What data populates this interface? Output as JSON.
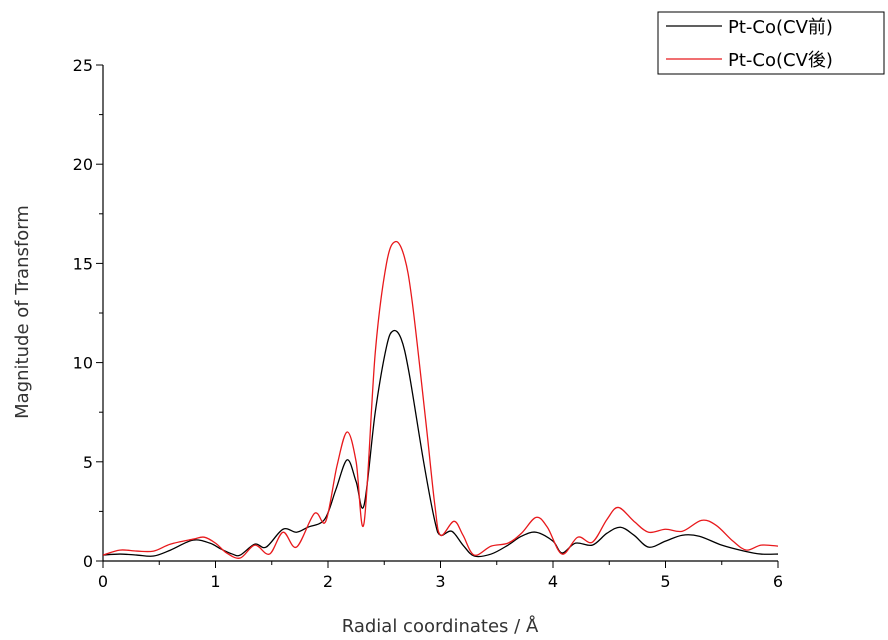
{
  "chart_data": {
    "type": "line",
    "xlabel": "Radial coordinates / Å",
    "ylabel": "Magnitude of Transform",
    "xlim": [
      0,
      6
    ],
    "ylim": [
      0,
      25
    ],
    "x_ticks": [
      0,
      1,
      2,
      3,
      4,
      5,
      6
    ],
    "y_ticks": [
      0,
      5,
      10,
      15,
      20,
      25
    ],
    "grid": false,
    "legend_position": "top-right",
    "series": [
      {
        "name": "Pt-Co(CV前)",
        "color": "#000000",
        "points": [
          [
            0.0,
            0.3
          ],
          [
            0.15,
            0.35
          ],
          [
            0.3,
            0.3
          ],
          [
            0.45,
            0.25
          ],
          [
            0.6,
            0.55
          ],
          [
            0.8,
            1.05
          ],
          [
            0.95,
            0.9
          ],
          [
            1.05,
            0.6
          ],
          [
            1.15,
            0.35
          ],
          [
            1.22,
            0.3
          ],
          [
            1.35,
            0.85
          ],
          [
            1.45,
            0.7
          ],
          [
            1.6,
            1.6
          ],
          [
            1.72,
            1.45
          ],
          [
            1.82,
            1.7
          ],
          [
            1.97,
            2.1
          ],
          [
            2.07,
            3.6
          ],
          [
            2.17,
            5.1
          ],
          [
            2.25,
            4.0
          ],
          [
            2.32,
            2.8
          ],
          [
            2.42,
            7.5
          ],
          [
            2.52,
            10.8
          ],
          [
            2.58,
            11.6
          ],
          [
            2.65,
            11.2
          ],
          [
            2.72,
            9.5
          ],
          [
            2.85,
            5.0
          ],
          [
            2.95,
            2.0
          ],
          [
            3.0,
            1.3
          ],
          [
            3.1,
            1.5
          ],
          [
            3.2,
            0.8
          ],
          [
            3.3,
            0.25
          ],
          [
            3.45,
            0.35
          ],
          [
            3.6,
            0.8
          ],
          [
            3.72,
            1.25
          ],
          [
            3.85,
            1.45
          ],
          [
            4.0,
            1.0
          ],
          [
            4.08,
            0.4
          ],
          [
            4.2,
            0.9
          ],
          [
            4.35,
            0.8
          ],
          [
            4.48,
            1.4
          ],
          [
            4.6,
            1.7
          ],
          [
            4.72,
            1.3
          ],
          [
            4.85,
            0.7
          ],
          [
            5.0,
            1.0
          ],
          [
            5.15,
            1.3
          ],
          [
            5.3,
            1.25
          ],
          [
            5.5,
            0.8
          ],
          [
            5.7,
            0.5
          ],
          [
            5.85,
            0.35
          ],
          [
            6.0,
            0.35
          ]
        ]
      },
      {
        "name": "Pt-Co(CV後)",
        "color": "#e8191c",
        "points": [
          [
            0.0,
            0.3
          ],
          [
            0.15,
            0.55
          ],
          [
            0.3,
            0.5
          ],
          [
            0.45,
            0.5
          ],
          [
            0.6,
            0.85
          ],
          [
            0.8,
            1.1
          ],
          [
            0.9,
            1.2
          ],
          [
            1.0,
            0.9
          ],
          [
            1.1,
            0.4
          ],
          [
            1.22,
            0.15
          ],
          [
            1.35,
            0.8
          ],
          [
            1.48,
            0.35
          ],
          [
            1.6,
            1.45
          ],
          [
            1.72,
            0.7
          ],
          [
            1.88,
            2.4
          ],
          [
            1.98,
            2.0
          ],
          [
            2.08,
            4.8
          ],
          [
            2.17,
            6.5
          ],
          [
            2.25,
            5.0
          ],
          [
            2.32,
            1.9
          ],
          [
            2.42,
            10.5
          ],
          [
            2.52,
            15.0
          ],
          [
            2.6,
            16.1
          ],
          [
            2.68,
            15.3
          ],
          [
            2.75,
            13.0
          ],
          [
            2.87,
            7.0
          ],
          [
            2.95,
            2.8
          ],
          [
            3.0,
            1.3
          ],
          [
            3.12,
            2.0
          ],
          [
            3.2,
            1.3
          ],
          [
            3.3,
            0.3
          ],
          [
            3.45,
            0.75
          ],
          [
            3.6,
            0.9
          ],
          [
            3.72,
            1.4
          ],
          [
            3.85,
            2.2
          ],
          [
            3.95,
            1.7
          ],
          [
            4.08,
            0.35
          ],
          [
            4.22,
            1.2
          ],
          [
            4.35,
            0.95
          ],
          [
            4.48,
            2.1
          ],
          [
            4.58,
            2.7
          ],
          [
            4.72,
            2.0
          ],
          [
            4.85,
            1.45
          ],
          [
            5.0,
            1.6
          ],
          [
            5.15,
            1.5
          ],
          [
            5.32,
            2.05
          ],
          [
            5.45,
            1.8
          ],
          [
            5.6,
            1.0
          ],
          [
            5.72,
            0.55
          ],
          [
            5.85,
            0.8
          ],
          [
            6.0,
            0.75
          ]
        ]
      }
    ]
  }
}
